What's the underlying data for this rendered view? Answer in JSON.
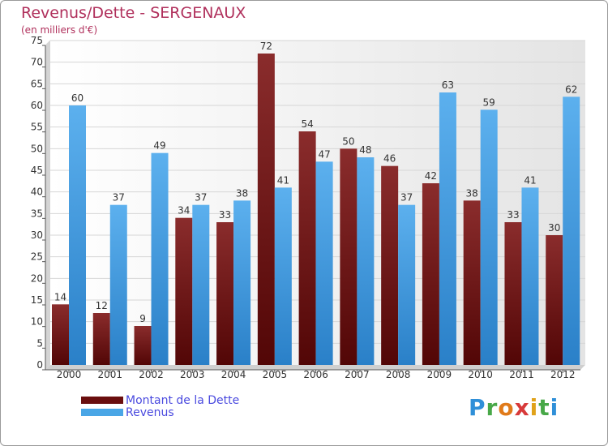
{
  "chart_data": {
    "type": "bar",
    "title": "Revenus/Dette - SERGENAUX",
    "subtitle": "(en milliers d'€)",
    "categories": [
      "2000",
      "2001",
      "2002",
      "2003",
      "2004",
      "2005",
      "2006",
      "2007",
      "2008",
      "2009",
      "2010",
      "2011",
      "2012"
    ],
    "series": [
      {
        "name": "Montant de la Dette",
        "color": "#7a1a1a",
        "values": [
          14,
          12,
          9,
          34,
          33,
          72,
          54,
          50,
          46,
          42,
          38,
          33,
          30
        ]
      },
      {
        "name": "Revenus",
        "color": "#4aa6e6",
        "values": [
          60,
          37,
          49,
          37,
          38,
          41,
          47,
          48,
          37,
          63,
          59,
          41,
          62
        ]
      }
    ],
    "ylim": [
      0,
      75
    ],
    "yticks": [
      0,
      5,
      10,
      15,
      20,
      25,
      30,
      35,
      40,
      45,
      50,
      55,
      60,
      65,
      70,
      75
    ],
    "grid": true,
    "legend": "bottom-left"
  },
  "logo": {
    "text": "Proxiti",
    "letters": [
      "P",
      "r",
      "o",
      "x",
      "i",
      "t",
      "i"
    ]
  }
}
